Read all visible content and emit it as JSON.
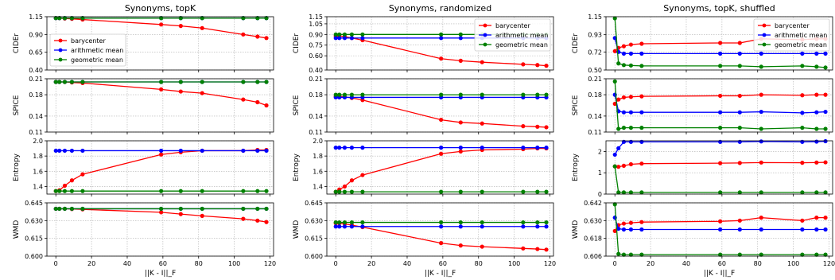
{
  "figure": {
    "columns": [
      {
        "title": "Synonyms, topK"
      },
      {
        "title": "Synonyms, randomized"
      },
      {
        "title": "Synonyms, topK, shuffled"
      }
    ],
    "row_labels": [
      "CIDEr",
      "SPICE",
      "Entropy",
      "WMD"
    ],
    "xlabel": "||K - I||_F"
  },
  "chart_data": [
    {
      "type": "line",
      "title": "Synonyms, topK",
      "xlabel": "",
      "ylabel": "CIDEr",
      "xlim": [
        -5,
        122
      ],
      "ylim": [
        0.4,
        1.15
      ],
      "yticks": [
        "0.40",
        "0.65",
        "0.90",
        "1.15"
      ],
      "grid": true,
      "legend": "center-left",
      "x": [
        0,
        2,
        5,
        9,
        15,
        59,
        70,
        82,
        105,
        113,
        118
      ],
      "series": [
        {
          "name": "barycenter",
          "color": "#ff0000",
          "values": [
            1.13,
            1.13,
            1.125,
            1.12,
            1.11,
            1.04,
            1.02,
            0.99,
            0.9,
            0.87,
            0.85
          ]
        },
        {
          "name": "arithmetic mean",
          "color": "#0000ff",
          "values": [
            1.13,
            1.13,
            1.13,
            1.13,
            1.13,
            1.13,
            1.13,
            1.13,
            1.13,
            1.13,
            1.13
          ]
        },
        {
          "name": "geometric mean",
          "color": "#008000",
          "values": [
            1.13,
            1.13,
            1.13,
            1.13,
            1.13,
            1.13,
            1.13,
            1.13,
            1.13,
            1.13,
            1.13
          ]
        }
      ]
    },
    {
      "type": "line",
      "title": "Synonyms, randomized",
      "xlabel": "",
      "ylabel": "CIDEr",
      "xlim": [
        -5,
        122
      ],
      "ylim": [
        0.4,
        1.15
      ],
      "yticks": [
        "0.40",
        "0.60",
        "0.75",
        "0.90",
        "1.05",
        "1.15"
      ],
      "grid": true,
      "legend": "top-right",
      "x": [
        0,
        2,
        5,
        9,
        15,
        59,
        70,
        82,
        105,
        113,
        118
      ],
      "series": [
        {
          "name": "barycenter",
          "color": "#ff0000",
          "values": [
            0.88,
            0.88,
            0.87,
            0.85,
            0.82,
            0.56,
            0.53,
            0.51,
            0.48,
            0.47,
            0.46
          ]
        },
        {
          "name": "arithmetic mean",
          "color": "#0000ff",
          "values": [
            0.85,
            0.85,
            0.85,
            0.85,
            0.85,
            0.85,
            0.85,
            0.85,
            0.85,
            0.85,
            0.85
          ]
        },
        {
          "name": "geometric mean",
          "color": "#008000",
          "values": [
            0.9,
            0.9,
            0.9,
            0.9,
            0.9,
            0.9,
            0.9,
            0.9,
            0.9,
            0.9,
            0.9
          ]
        }
      ]
    },
    {
      "type": "line",
      "title": "Synonyms, topK, shuffled",
      "xlabel": "",
      "ylabel": "CIDEr",
      "xlim": [
        -5,
        122
      ],
      "ylim": [
        0.5,
        1.15
      ],
      "yticks": [
        "0.50",
        "0.72",
        "0.93",
        "1.15"
      ],
      "grid": true,
      "legend": "top-right",
      "x": [
        0,
        2,
        5,
        9,
        15,
        59,
        70,
        82,
        105,
        113,
        118
      ],
      "series": [
        {
          "name": "barycenter",
          "color": "#ff0000",
          "values": [
            0.73,
            0.77,
            0.79,
            0.81,
            0.82,
            0.83,
            0.83,
            0.88,
            0.87,
            0.88,
            0.88
          ]
        },
        {
          "name": "arithmetic mean",
          "color": "#0000ff",
          "values": [
            0.89,
            0.72,
            0.7,
            0.7,
            0.7,
            0.7,
            0.7,
            0.7,
            0.7,
            0.7,
            0.7
          ]
        },
        {
          "name": "geometric mean",
          "color": "#008000",
          "values": [
            1.13,
            0.58,
            0.56,
            0.555,
            0.55,
            0.55,
            0.55,
            0.54,
            0.55,
            0.54,
            0.53
          ]
        }
      ]
    },
    {
      "type": "line",
      "title": "",
      "xlabel": "",
      "ylabel": "SPICE",
      "xlim": [
        -5,
        122
      ],
      "ylim": [
        0.11,
        0.21
      ],
      "yticks": [
        "0.11",
        "0.14",
        "0.18",
        "0.21"
      ],
      "grid": true,
      "x": [
        0,
        2,
        5,
        9,
        15,
        59,
        70,
        82,
        105,
        113,
        118
      ],
      "series": [
        {
          "name": "barycenter",
          "color": "#ff0000",
          "values": [
            0.204,
            0.204,
            0.204,
            0.203,
            0.202,
            0.19,
            0.186,
            0.183,
            0.171,
            0.166,
            0.16
          ]
        },
        {
          "name": "arithmetic mean",
          "color": "#0000ff",
          "values": [
            0.204,
            0.204,
            0.204,
            0.204,
            0.204,
            0.204,
            0.204,
            0.204,
            0.204,
            0.204,
            0.204
          ]
        },
        {
          "name": "geometric mean",
          "color": "#008000",
          "values": [
            0.204,
            0.204,
            0.204,
            0.204,
            0.204,
            0.204,
            0.204,
            0.204,
            0.204,
            0.204,
            0.204
          ]
        }
      ]
    },
    {
      "type": "line",
      "title": "",
      "xlabel": "",
      "ylabel": "SPICE",
      "xlim": [
        -5,
        122
      ],
      "ylim": [
        0.11,
        0.21
      ],
      "yticks": [
        "0.11",
        "0.14",
        "0.18",
        "0.21"
      ],
      "grid": true,
      "x": [
        0,
        2,
        5,
        9,
        15,
        59,
        70,
        82,
        105,
        113,
        118
      ],
      "series": [
        {
          "name": "barycenter",
          "color": "#ff0000",
          "values": [
            0.177,
            0.177,
            0.176,
            0.174,
            0.17,
            0.133,
            0.128,
            0.126,
            0.121,
            0.12,
            0.119
          ]
        },
        {
          "name": "arithmetic mean",
          "color": "#0000ff",
          "values": [
            0.175,
            0.175,
            0.175,
            0.175,
            0.175,
            0.175,
            0.175,
            0.175,
            0.175,
            0.175,
            0.175
          ]
        },
        {
          "name": "geometric mean",
          "color": "#008000",
          "values": [
            0.18,
            0.18,
            0.18,
            0.18,
            0.18,
            0.18,
            0.18,
            0.18,
            0.18,
            0.18,
            0.18
          ]
        }
      ]
    },
    {
      "type": "line",
      "title": "",
      "xlabel": "",
      "ylabel": "SPICE",
      "xlim": [
        -5,
        122
      ],
      "ylim": [
        0.11,
        0.21
      ],
      "yticks": [
        "0.11",
        "0.14",
        "0.18",
        "0.21"
      ],
      "grid": true,
      "x": [
        0,
        2,
        5,
        9,
        15,
        59,
        70,
        82,
        105,
        113,
        118
      ],
      "series": [
        {
          "name": "barycenter",
          "color": "#ff0000",
          "values": [
            0.163,
            0.171,
            0.175,
            0.176,
            0.177,
            0.178,
            0.178,
            0.18,
            0.179,
            0.18,
            0.18
          ]
        },
        {
          "name": "arithmetic mean",
          "color": "#0000ff",
          "values": [
            0.18,
            0.149,
            0.147,
            0.147,
            0.147,
            0.147,
            0.147,
            0.148,
            0.146,
            0.147,
            0.148
          ]
        },
        {
          "name": "geometric mean",
          "color": "#008000",
          "values": [
            0.205,
            0.116,
            0.118,
            0.118,
            0.118,
            0.118,
            0.118,
            0.116,
            0.118,
            0.116,
            0.116
          ]
        }
      ]
    },
    {
      "type": "line",
      "title": "",
      "xlabel": "",
      "ylabel": "Entropy",
      "xlim": [
        -5,
        122
      ],
      "ylim": [
        1.3,
        2.0
      ],
      "yticks": [
        "1.4",
        "1.6",
        "1.8",
        "2.0"
      ],
      "grid": true,
      "x": [
        0,
        2,
        5,
        9,
        15,
        59,
        70,
        82,
        105,
        113,
        118
      ],
      "series": [
        {
          "name": "barycenter",
          "color": "#ff0000",
          "values": [
            1.34,
            1.35,
            1.41,
            1.48,
            1.56,
            1.82,
            1.85,
            1.87,
            1.87,
            1.88,
            1.88
          ]
        },
        {
          "name": "arithmetic mean",
          "color": "#0000ff",
          "values": [
            1.87,
            1.87,
            1.87,
            1.87,
            1.87,
            1.87,
            1.87,
            1.87,
            1.87,
            1.87,
            1.87
          ]
        },
        {
          "name": "geometric mean",
          "color": "#008000",
          "values": [
            1.34,
            1.34,
            1.34,
            1.34,
            1.34,
            1.34,
            1.34,
            1.34,
            1.34,
            1.34,
            1.34
          ]
        }
      ]
    },
    {
      "type": "line",
      "title": "",
      "xlabel": "",
      "ylabel": "Entropy",
      "xlim": [
        -5,
        122
      ],
      "ylim": [
        1.3,
        2.0
      ],
      "yticks": [
        "1.4",
        "1.6",
        "1.8",
        "2.0"
      ],
      "grid": true,
      "x": [
        0,
        2,
        5,
        9,
        15,
        59,
        70,
        82,
        105,
        113,
        118
      ],
      "series": [
        {
          "name": "barycenter",
          "color": "#ff0000",
          "values": [
            1.33,
            1.36,
            1.4,
            1.48,
            1.55,
            1.83,
            1.86,
            1.88,
            1.89,
            1.9,
            1.9
          ]
        },
        {
          "name": "arithmetic mean",
          "color": "#0000ff",
          "values": [
            1.91,
            1.91,
            1.91,
            1.91,
            1.91,
            1.91,
            1.91,
            1.91,
            1.91,
            1.91,
            1.91
          ]
        },
        {
          "name": "geometric mean",
          "color": "#008000",
          "values": [
            1.33,
            1.33,
            1.33,
            1.33,
            1.33,
            1.33,
            1.33,
            1.33,
            1.33,
            1.33,
            1.33
          ]
        }
      ]
    },
    {
      "type": "line",
      "title": "",
      "xlabel": "",
      "ylabel": "Entropy",
      "xlim": [
        -5,
        122
      ],
      "ylim": [
        0,
        2.5
      ],
      "yticks": [
        "0",
        "1",
        "2"
      ],
      "grid": true,
      "x": [
        0,
        2,
        5,
        9,
        15,
        59,
        70,
        82,
        105,
        113,
        118
      ],
      "series": [
        {
          "name": "barycenter",
          "color": "#ff0000",
          "values": [
            1.3,
            1.28,
            1.33,
            1.4,
            1.43,
            1.45,
            1.46,
            1.48,
            1.47,
            1.48,
            1.49
          ]
        },
        {
          "name": "arithmetic mean",
          "color": "#0000ff",
          "values": [
            1.85,
            2.15,
            2.45,
            2.45,
            2.45,
            2.45,
            2.45,
            2.47,
            2.45,
            2.46,
            2.48
          ]
        },
        {
          "name": "geometric mean",
          "color": "#008000",
          "values": [
            1.3,
            0.08,
            0.08,
            0.08,
            0.08,
            0.08,
            0.08,
            0.08,
            0.08,
            0.08,
            0.08
          ]
        }
      ]
    },
    {
      "type": "line",
      "title": "",
      "xlabel": "||K - I||_F",
      "ylabel": "WMD",
      "xlim": [
        -5,
        122
      ],
      "ylim": [
        0.6,
        0.645
      ],
      "yticks": [
        "0.600",
        "0.615",
        "0.630",
        "0.645"
      ],
      "xticks": [
        0,
        20,
        40,
        60,
        80,
        100,
        120
      ],
      "grid": true,
      "x": [
        0,
        2,
        5,
        9,
        15,
        59,
        70,
        82,
        105,
        113,
        118
      ],
      "series": [
        {
          "name": "barycenter",
          "color": "#ff0000",
          "values": [
            0.64,
            0.64,
            0.64,
            0.6398,
            0.6395,
            0.637,
            0.6355,
            0.634,
            0.6315,
            0.63,
            0.6288
          ]
        },
        {
          "name": "arithmetic mean",
          "color": "#0000ff",
          "values": [
            0.64,
            0.64,
            0.64,
            0.64,
            0.64,
            0.64,
            0.64,
            0.64,
            0.64,
            0.64,
            0.64
          ]
        },
        {
          "name": "geometric mean",
          "color": "#008000",
          "values": [
            0.64,
            0.64,
            0.64,
            0.64,
            0.64,
            0.64,
            0.64,
            0.64,
            0.64,
            0.64,
            0.64
          ]
        }
      ]
    },
    {
      "type": "line",
      "title": "",
      "xlabel": "||K - I||_F",
      "ylabel": "WMD",
      "xlim": [
        -5,
        122
      ],
      "ylim": [
        0.6,
        0.645
      ],
      "yticks": [
        "0.600",
        "0.615",
        "0.630",
        "0.645"
      ],
      "xticks": [
        0,
        20,
        40,
        60,
        80,
        100,
        120
      ],
      "grid": true,
      "x": [
        0,
        2,
        5,
        9,
        15,
        59,
        70,
        82,
        105,
        113,
        118
      ],
      "series": [
        {
          "name": "barycenter",
          "color": "#ff0000",
          "values": [
            0.6278,
            0.6278,
            0.6272,
            0.6262,
            0.6245,
            0.611,
            0.609,
            0.608,
            0.6065,
            0.606,
            0.6055
          ]
        },
        {
          "name": "arithmetic mean",
          "color": "#0000ff",
          "values": [
            0.625,
            0.625,
            0.625,
            0.625,
            0.625,
            0.625,
            0.625,
            0.625,
            0.625,
            0.625,
            0.625
          ]
        },
        {
          "name": "geometric mean",
          "color": "#008000",
          "values": [
            0.6285,
            0.6285,
            0.6285,
            0.6285,
            0.6285,
            0.6285,
            0.6285,
            0.6285,
            0.6285,
            0.6285,
            0.6285
          ]
        }
      ]
    },
    {
      "type": "line",
      "title": "",
      "xlabel": "||K - I||_F",
      "ylabel": "WMD",
      "xlim": [
        -5,
        122
      ],
      "ylim": [
        0.606,
        0.642
      ],
      "yticks": [
        "0.606",
        "0.618",
        "0.630",
        "0.642"
      ],
      "xticks": [
        0,
        20,
        40,
        60,
        80,
        100,
        120
      ],
      "grid": true,
      "x": [
        0,
        2,
        5,
        9,
        15,
        59,
        70,
        82,
        105,
        113,
        118
      ],
      "series": [
        {
          "name": "barycenter",
          "color": "#ff0000",
          "values": [
            0.623,
            0.627,
            0.628,
            0.6285,
            0.629,
            0.6295,
            0.63,
            0.632,
            0.63,
            0.632,
            0.632
          ]
        },
        {
          "name": "arithmetic mean",
          "color": "#0000ff",
          "values": [
            0.632,
            0.6245,
            0.624,
            0.624,
            0.624,
            0.624,
            0.624,
            0.624,
            0.624,
            0.624,
            0.624
          ]
        },
        {
          "name": "geometric mean",
          "color": "#008000",
          "values": [
            0.641,
            0.6075,
            0.607,
            0.607,
            0.607,
            0.607,
            0.607,
            0.607,
            0.607,
            0.607,
            0.607
          ]
        }
      ]
    }
  ]
}
